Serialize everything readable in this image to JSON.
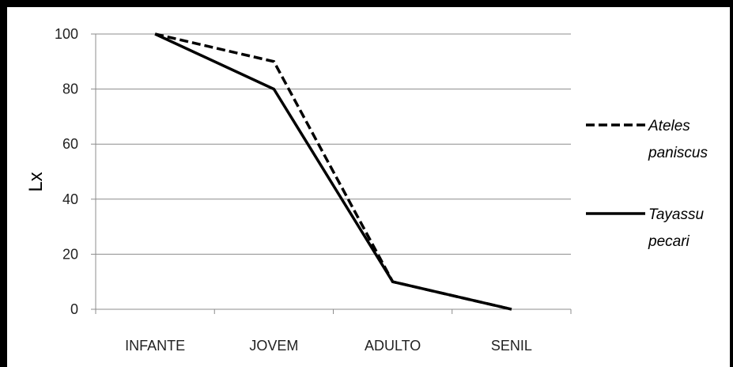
{
  "chart_data": {
    "type": "line",
    "categories": [
      "INFANTE",
      "JOVEM",
      "ADULTO",
      "SENIL"
    ],
    "ylabel": "Lx",
    "ylim": [
      0,
      100
    ],
    "yticks": [
      "0",
      "20",
      "40",
      "60",
      "80",
      "100"
    ],
    "grid": true,
    "legend_position": "right",
    "series": [
      {
        "name_lines": [
          "Ateles",
          "paniscus"
        ],
        "style": "dashed",
        "color": "#000000",
        "values": [
          100,
          90,
          10,
          0
        ]
      },
      {
        "name_lines": [
          "Tayassu",
          "pecari"
        ],
        "style": "solid",
        "color": "#000000",
        "values": [
          100,
          80,
          10,
          0
        ]
      }
    ]
  }
}
